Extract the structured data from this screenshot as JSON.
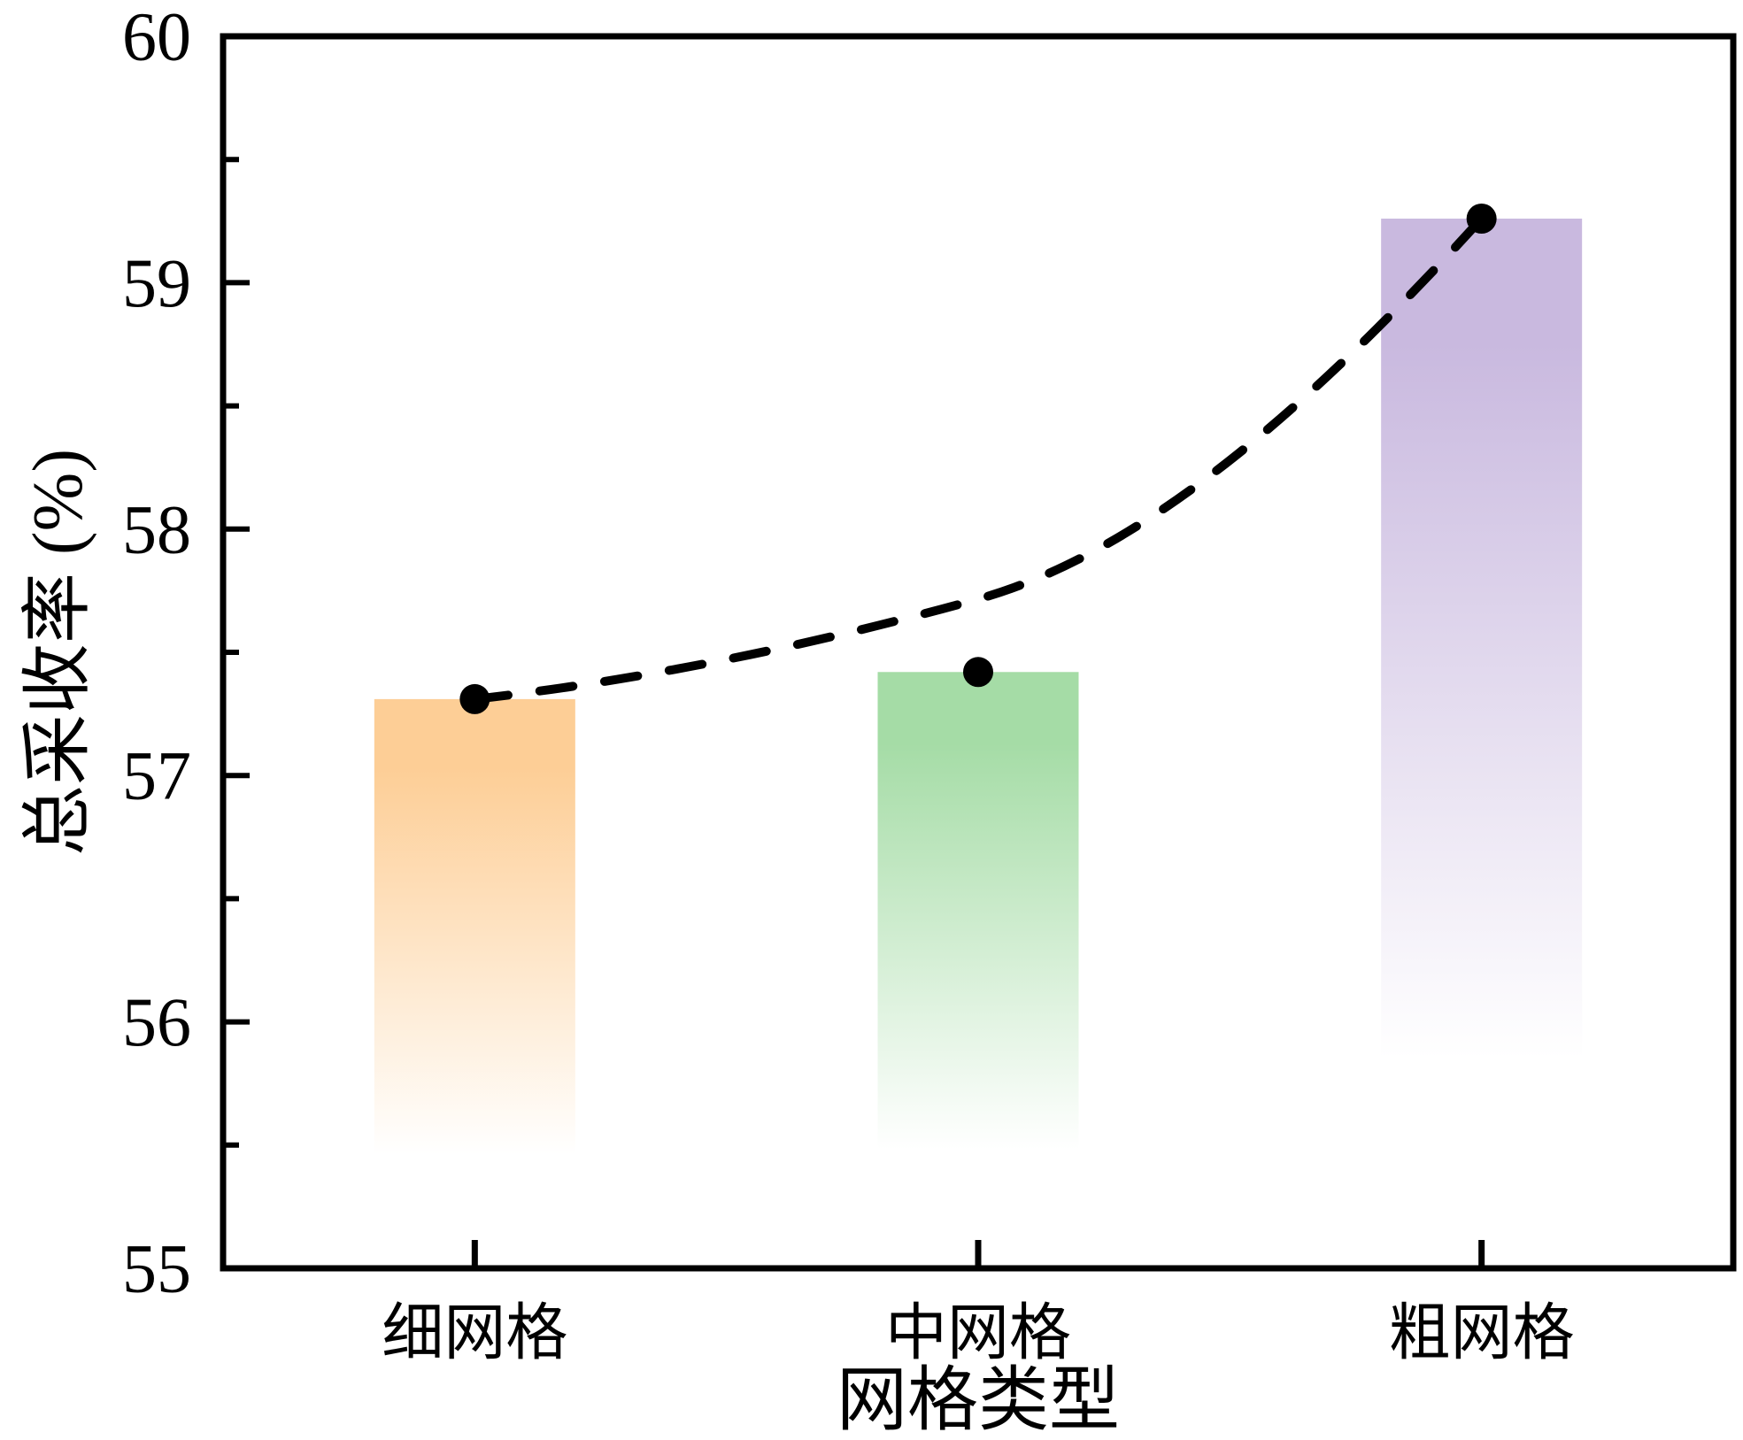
{
  "chart_data": {
    "type": "bar",
    "categories": [
      "细网格",
      "中网格",
      "粗网格"
    ],
    "values": [
      57.31,
      57.42,
      59.26
    ],
    "title": "",
    "xlabel": "网格类型",
    "ylabel": "总采收率 (%)",
    "ylim": [
      55,
      60
    ],
    "y_major_ticks": [
      55,
      56,
      57,
      58,
      59,
      60
    ],
    "y_minor_tick_step": 0.5,
    "grid": false,
    "legend": "none",
    "bar_top_colors": [
      "#FDCE96",
      "#A5DCA6",
      "#C9B9DF"
    ],
    "bar_bottom_color": "#FFFFFF",
    "axis_color": "#000000",
    "trend_line": {
      "style": "dashed",
      "color": "#000000",
      "marker": "filled-circle",
      "marker_color": "#000000",
      "description": "smooth dashed trend curve from first bar top to third bar top with round markers at each bar top"
    }
  }
}
